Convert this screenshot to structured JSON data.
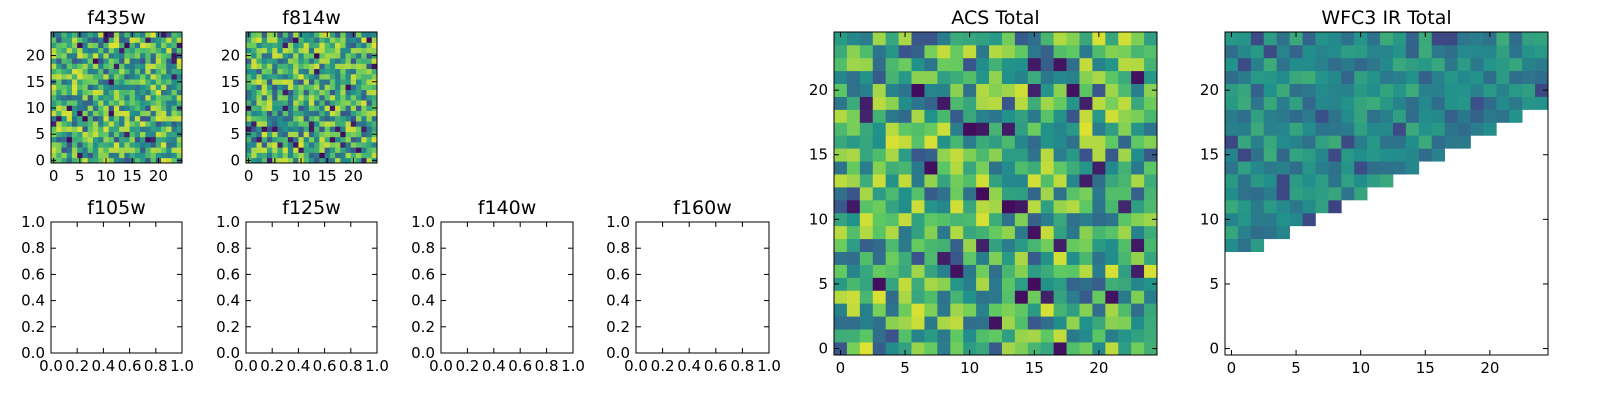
{
  "chart_data": [
    {
      "type": "heatmap",
      "title": "f435w",
      "xticks": [
        "0",
        "5",
        "10",
        "15",
        "20"
      ],
      "yticks": [
        "0",
        "5",
        "10",
        "15",
        "20"
      ],
      "xlim": [
        -0.5,
        24.5
      ],
      "ylim": [
        -0.5,
        24.5
      ],
      "grid_size": 25,
      "colormap": "viridis",
      "mask": "none",
      "grid": false,
      "values": []
    },
    {
      "type": "heatmap",
      "title": "f814w",
      "xticks": [
        "0",
        "5",
        "10",
        "15",
        "20"
      ],
      "yticks": [
        "0",
        "5",
        "10",
        "15",
        "20"
      ],
      "xlim": [
        -0.5,
        24.5
      ],
      "ylim": [
        -0.5,
        24.5
      ],
      "grid_size": 25,
      "colormap": "viridis",
      "mask": "none",
      "grid": false,
      "values": []
    },
    {
      "type": "empty",
      "title": "f105w",
      "xticks": [
        "0.0",
        "0.2",
        "0.4",
        "0.6",
        "0.8",
        "1.0"
      ],
      "yticks": [
        "0.0",
        "0.2",
        "0.4",
        "0.6",
        "0.8",
        "1.0"
      ],
      "xlim": [
        0,
        1
      ],
      "ylim": [
        0,
        1
      ],
      "grid": false
    },
    {
      "type": "empty",
      "title": "f125w",
      "xticks": [
        "0.0",
        "0.2",
        "0.4",
        "0.6",
        "0.8",
        "1.0"
      ],
      "yticks": [
        "0.0",
        "0.2",
        "0.4",
        "0.6",
        "0.8",
        "1.0"
      ],
      "xlim": [
        0,
        1
      ],
      "ylim": [
        0,
        1
      ],
      "grid": false
    },
    {
      "type": "empty",
      "title": "f140w",
      "xticks": [
        "0.0",
        "0.2",
        "0.4",
        "0.6",
        "0.8",
        "1.0"
      ],
      "yticks": [
        "0.0",
        "0.2",
        "0.4",
        "0.6",
        "0.8",
        "1.0"
      ],
      "xlim": [
        0,
        1
      ],
      "ylim": [
        0,
        1
      ],
      "grid": false
    },
    {
      "type": "empty",
      "title": "f160w",
      "xticks": [
        "0.0",
        "0.2",
        "0.4",
        "0.6",
        "0.8",
        "1.0"
      ],
      "yticks": [
        "0.0",
        "0.2",
        "0.4",
        "0.6",
        "0.8",
        "1.0"
      ],
      "xlim": [
        0,
        1
      ],
      "ylim": [
        0,
        1
      ],
      "grid": false
    },
    {
      "type": "heatmap",
      "title": "ACS Total",
      "xticks": [
        "0",
        "5",
        "10",
        "15",
        "20"
      ],
      "yticks": [
        "0",
        "5",
        "10",
        "15",
        "20"
      ],
      "xlim": [
        -0.5,
        24.5
      ],
      "ylim": [
        -0.5,
        24.5
      ],
      "grid_size": 25,
      "colormap": "viridis",
      "mask": "none",
      "grid": false,
      "values": []
    },
    {
      "type": "heatmap",
      "title": "WFC3 IR Total",
      "xticks": [
        "0",
        "5",
        "10",
        "15",
        "20"
      ],
      "yticks": [
        "0",
        "5",
        "10",
        "15",
        "20"
      ],
      "xlim": [
        -0.5,
        24.5
      ],
      "ylim": [
        -0.5,
        24.5
      ],
      "grid_size": 25,
      "colormap": "viridis",
      "mask": "upper staircase; lower-right region blank",
      "grid": false,
      "values": []
    }
  ]
}
